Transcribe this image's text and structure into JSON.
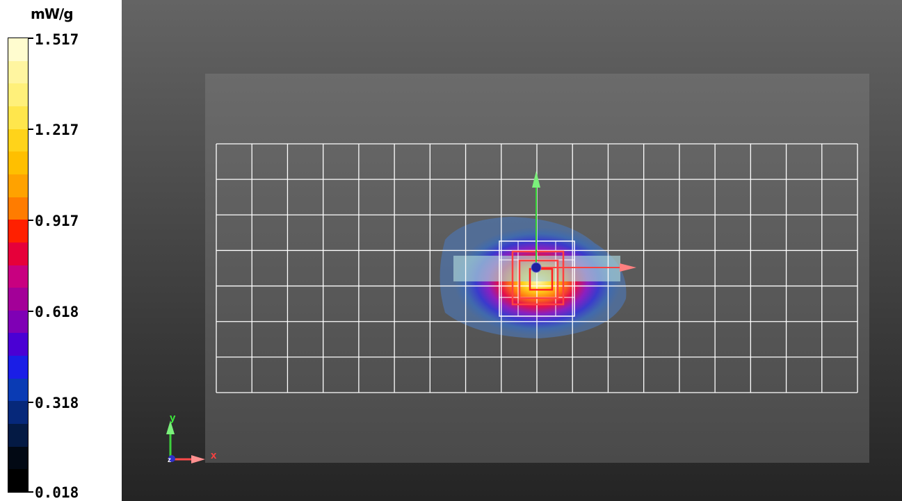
{
  "colorbar": {
    "unit": "mW/g",
    "ticks": [
      "1.517",
      "1.217",
      "0.917",
      "0.618",
      "0.318",
      "0.018"
    ],
    "colors": [
      "#fffccf",
      "#fff5a0",
      "#fff07a",
      "#ffe64c",
      "#ffd31a",
      "#ffbf00",
      "#ffa200",
      "#ff7c00",
      "#ff2000",
      "#e6003a",
      "#c80080",
      "#a30098",
      "#7f00b5",
      "#4a00d4",
      "#1a1ee6",
      "#0a3bb4",
      "#06287a",
      "#041a44",
      "#020914",
      "#000000"
    ]
  },
  "axes": {
    "x_label": "x",
    "y_label": "y",
    "z_label": "z"
  }
}
